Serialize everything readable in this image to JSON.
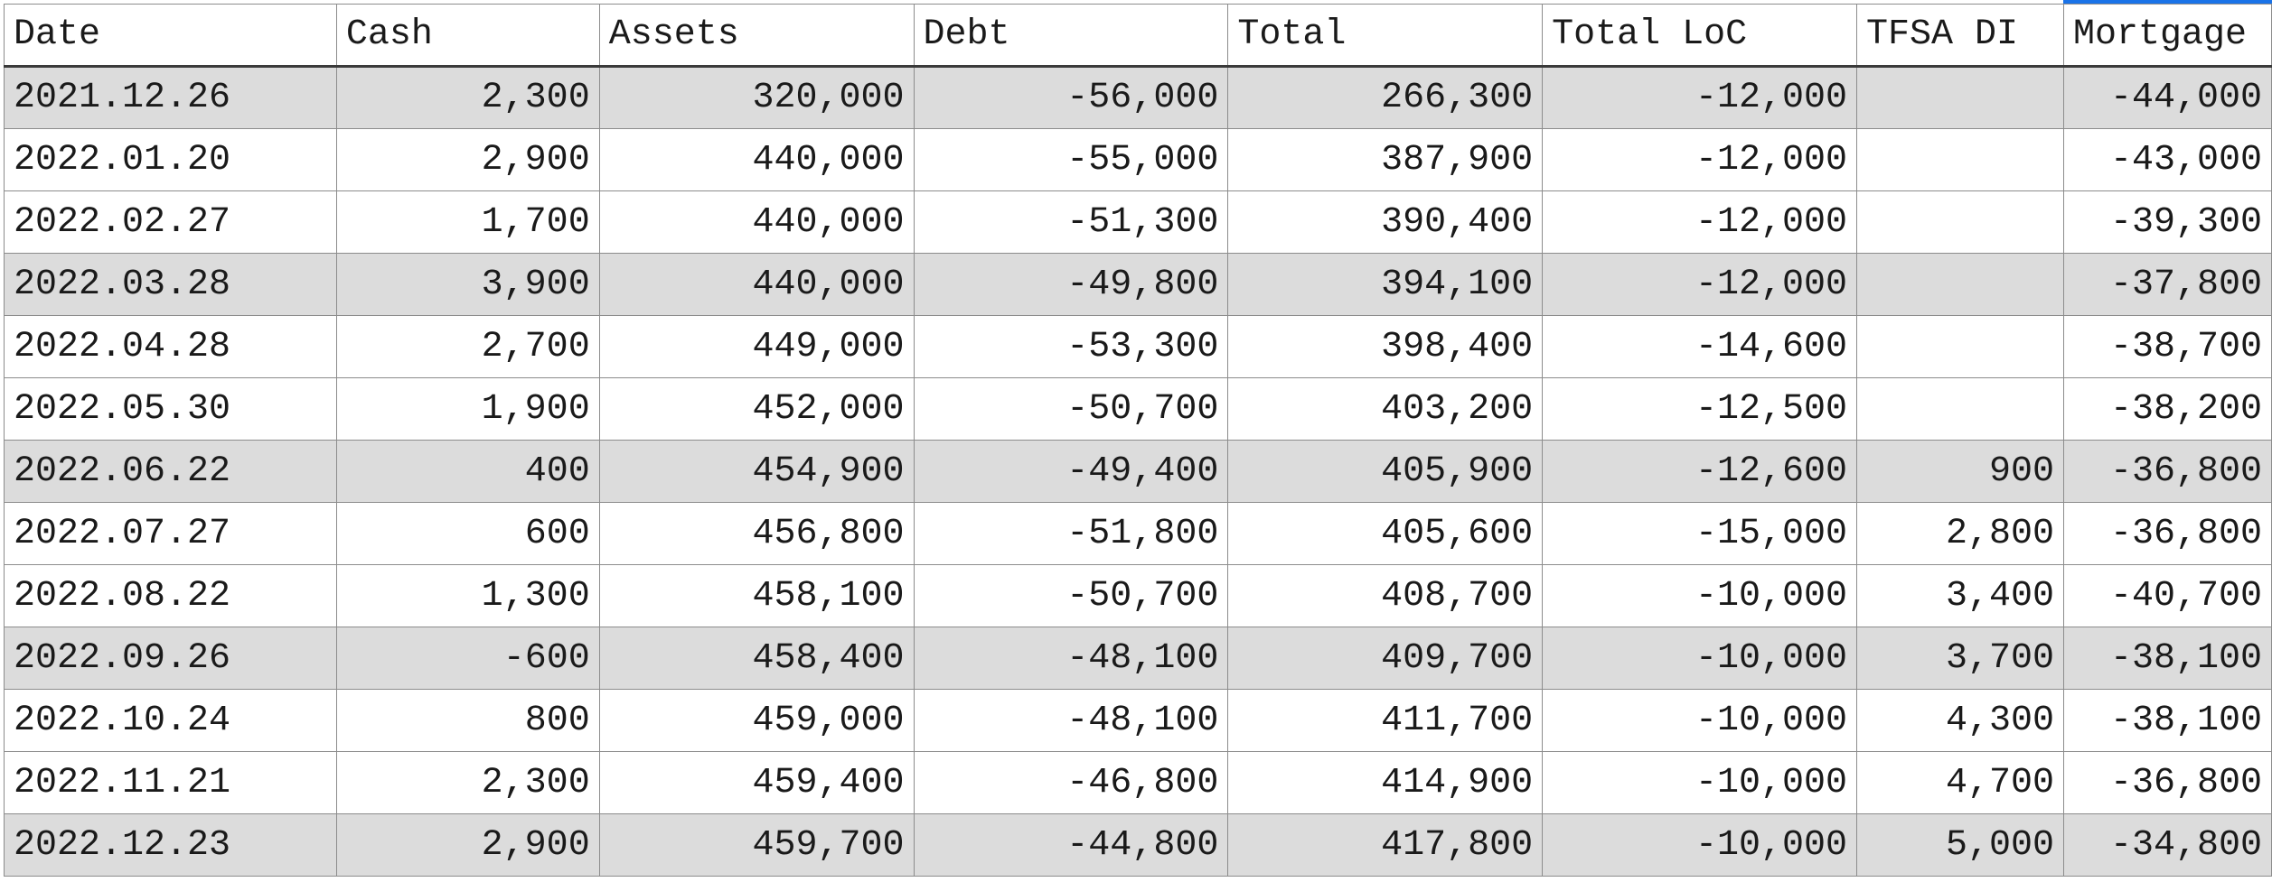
{
  "table": {
    "headers": [
      "Date",
      "Cash",
      "Assets",
      "Debt",
      "Total",
      "Total LoC",
      "TFSA DI",
      "Mortgage"
    ],
    "rows": [
      {
        "shaded": true,
        "cells": [
          "2021.12.26",
          "2,300",
          "320,000",
          "-56,000",
          "266,300",
          "-12,000",
          "",
          "-44,000"
        ]
      },
      {
        "shaded": false,
        "cells": [
          "2022.01.20",
          "2,900",
          "440,000",
          "-55,000",
          "387,900",
          "-12,000",
          "",
          "-43,000"
        ]
      },
      {
        "shaded": false,
        "cells": [
          "2022.02.27",
          "1,700",
          "440,000",
          "-51,300",
          "390,400",
          "-12,000",
          "",
          "-39,300"
        ]
      },
      {
        "shaded": true,
        "cells": [
          "2022.03.28",
          "3,900",
          "440,000",
          "-49,800",
          "394,100",
          "-12,000",
          "",
          "-37,800"
        ]
      },
      {
        "shaded": false,
        "cells": [
          "2022.04.28",
          "2,700",
          "449,000",
          "-53,300",
          "398,400",
          "-14,600",
          "",
          "-38,700"
        ]
      },
      {
        "shaded": false,
        "cells": [
          "2022.05.30",
          "1,900",
          "452,000",
          "-50,700",
          "403,200",
          "-12,500",
          "",
          "-38,200"
        ]
      },
      {
        "shaded": true,
        "cells": [
          "2022.06.22",
          "400",
          "454,900",
          "-49,400",
          "405,900",
          "-12,600",
          "900",
          "-36,800"
        ]
      },
      {
        "shaded": false,
        "cells": [
          "2022.07.27",
          "600",
          "456,800",
          "-51,800",
          "405,600",
          "-15,000",
          "2,800",
          "-36,800"
        ]
      },
      {
        "shaded": false,
        "cells": [
          "2022.08.22",
          "1,300",
          "458,100",
          "-50,700",
          "408,700",
          "-10,000",
          "3,400",
          "-40,700"
        ]
      },
      {
        "shaded": true,
        "cells": [
          "2022.09.26",
          "-600",
          "458,400",
          "-48,100",
          "409,700",
          "-10,000",
          "3,700",
          "-38,100"
        ]
      },
      {
        "shaded": false,
        "cells": [
          "2022.10.24",
          "800",
          "459,000",
          "-48,100",
          "411,700",
          "-10,000",
          "4,300",
          "-38,100"
        ]
      },
      {
        "shaded": false,
        "cells": [
          "2022.11.21",
          "2,300",
          "459,400",
          "-46,800",
          "414,900",
          "-10,000",
          "4,700",
          "-36,800"
        ]
      },
      {
        "shaded": true,
        "cells": [
          "2022.12.23",
          "2,900",
          "459,700",
          "-44,800",
          "417,800",
          "-10,000",
          "5,000",
          "-34,800"
        ]
      }
    ]
  },
  "colors": {
    "row_shade": "#dcdcdc",
    "grid": "#8c8c8c",
    "selection_accent": "#1a73e8"
  }
}
